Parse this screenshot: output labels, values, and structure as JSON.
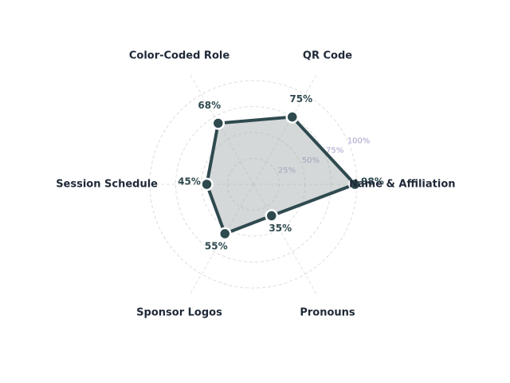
{
  "chart_data": {
    "type": "radar",
    "categories": [
      "Name & Affiliation",
      "QR Code",
      "Color-Coded Role",
      "Session Schedule",
      "Sponsor Logos",
      "Pronouns"
    ],
    "values": [
      98,
      75,
      68,
      45,
      55,
      35
    ],
    "value_labels": [
      "98%",
      "75%",
      "68%",
      "45%",
      "55%",
      "35%"
    ],
    "color": "#2f4a4f",
    "ylim": [
      0,
      100
    ],
    "yticks": [
      {
        "value": 25,
        "label": "25%"
      },
      {
        "value": 50,
        "label": "50%"
      },
      {
        "value": 75,
        "label": "75%"
      },
      {
        "value": 100,
        "label": "100%"
      }
    ],
    "grid": true
  }
}
